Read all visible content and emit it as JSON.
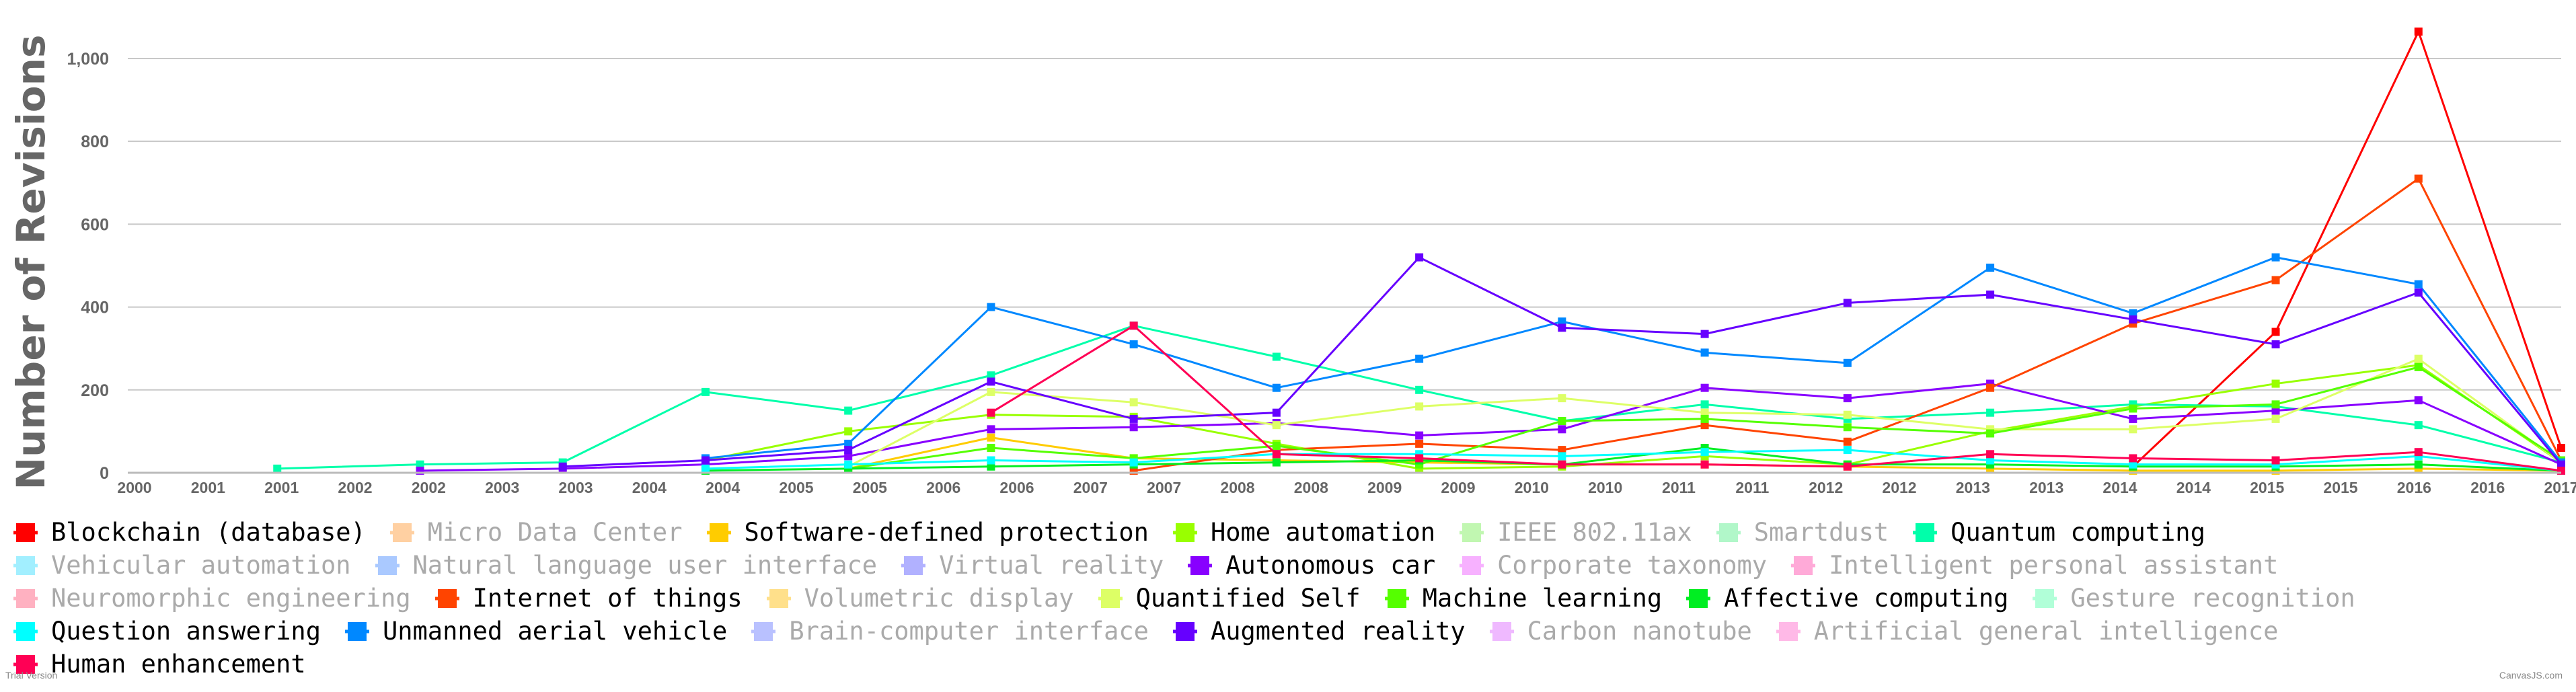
{
  "chart_data": {
    "type": "line",
    "ylabel": "Number of Revisions",
    "xlabel": "",
    "y_ticks": [
      "0",
      "200",
      "400",
      "600",
      "800",
      "1,000"
    ],
    "ylim": [
      0,
      1060
    ],
    "x_ticks": [
      "2000",
      "2001",
      "2001",
      "2002",
      "2002",
      "2003",
      "2003",
      "2004",
      "2004",
      "2005",
      "2005",
      "2006",
      "2006",
      "2007",
      "2007",
      "2008",
      "2008",
      "2009",
      "2009",
      "2010",
      "2010",
      "2011",
      "2011",
      "2012",
      "2012",
      "2013",
      "2013",
      "2014",
      "2014",
      "2015",
      "2015",
      "2016",
      "2016",
      "2017"
    ],
    "xlim": [
      2000,
      2017
    ],
    "grid": true,
    "legend_position": "bottom",
    "series": [
      {
        "name": "Blockchain (database)",
        "color": "#ff0000",
        "visible": true,
        "x": [
          2014,
          2015,
          2016,
          2017
        ],
        "y": [
          15,
          340,
          1065,
          60
        ]
      },
      {
        "name": "Micro Data Center",
        "color": "#ff9933",
        "visible": false,
        "x": [],
        "y": []
      },
      {
        "name": "Software-defined protection",
        "color": "#ffcc00",
        "visible": true,
        "x": [
          2005,
          2006,
          2007,
          2008,
          2009,
          2010,
          2011,
          2012,
          2013,
          2014,
          2015,
          2016,
          2017
        ],
        "y": [
          10,
          85,
          35,
          30,
          25,
          20,
          20,
          15,
          10,
          5,
          5,
          10,
          5
        ]
      },
      {
        "name": "Home automation",
        "color": "#99ff00",
        "visible": true,
        "x": [
          2004,
          2005,
          2006,
          2007,
          2008,
          2009,
          2010,
          2011,
          2012,
          2013,
          2014,
          2015,
          2016,
          2017
        ],
        "y": [
          30,
          100,
          140,
          135,
          70,
          10,
          15,
          40,
          20,
          100,
          160,
          215,
          260,
          25
        ]
      },
      {
        "name": "IEEE 802.11ax",
        "color": "#77ee55",
        "visible": false,
        "x": [],
        "y": []
      },
      {
        "name": "Smartdust",
        "color": "#55ee88",
        "visible": false,
        "x": [],
        "y": []
      },
      {
        "name": "Quantum computing",
        "color": "#00ffaa",
        "visible": true,
        "x": [
          2001,
          2002,
          2003,
          2004,
          2005,
          2006,
          2007,
          2008,
          2009,
          2010,
          2011,
          2012,
          2013,
          2014,
          2015,
          2016,
          2017
        ],
        "y": [
          10,
          20,
          25,
          195,
          150,
          235,
          355,
          280,
          200,
          125,
          165,
          130,
          145,
          165,
          160,
          115,
          25
        ]
      },
      {
        "name": "Vehicular automation",
        "color": "#33ddff",
        "visible": false,
        "x": [],
        "y": []
      },
      {
        "name": "Natural language user interface",
        "color": "#4488ff",
        "visible": false,
        "x": [],
        "y": []
      },
      {
        "name": "Virtual reality",
        "color": "#5555ff",
        "visible": false,
        "x": [],
        "y": []
      },
      {
        "name": "Autonomous car",
        "color": "#8800ff",
        "visible": true,
        "x": [
          2002,
          2003,
          2004,
          2005,
          2006,
          2007,
          2008,
          2009,
          2010,
          2011,
          2012,
          2013,
          2014,
          2015,
          2016,
          2017
        ],
        "y": [
          5,
          10,
          20,
          40,
          105,
          110,
          120,
          90,
          105,
          205,
          180,
          215,
          130,
          150,
          175,
          20
        ]
      },
      {
        "name": "Corporate taxonomy",
        "color": "#ee55ff",
        "visible": false,
        "x": [],
        "y": []
      },
      {
        "name": "Intelligent personal assistant",
        "color": "#ff44aa",
        "visible": false,
        "x": [],
        "y": []
      },
      {
        "name": "Neuromorphic engineering",
        "color": "#ff5577",
        "visible": false,
        "x": [],
        "y": []
      },
      {
        "name": "Internet of things",
        "color": "#ff4400",
        "visible": true,
        "x": [
          2007,
          2008,
          2009,
          2010,
          2011,
          2012,
          2013,
          2014,
          2015,
          2016,
          2017
        ],
        "y": [
          5,
          55,
          70,
          55,
          115,
          75,
          205,
          360,
          465,
          710,
          30
        ]
      },
      {
        "name": "Volumetric display",
        "color": "#ffbb00",
        "visible": false,
        "x": [],
        "y": []
      },
      {
        "name": "Quantified Self",
        "color": "#ddff66",
        "visible": true,
        "x": [
          2005,
          2006,
          2007,
          2008,
          2009,
          2010,
          2011,
          2012,
          2013,
          2014,
          2015,
          2016,
          2017
        ],
        "y": [
          15,
          195,
          170,
          115,
          160,
          180,
          145,
          140,
          105,
          105,
          130,
          275,
          25
        ]
      },
      {
        "name": "Machine learning",
        "color": "#55ff00",
        "visible": true,
        "x": [
          2005,
          2006,
          2007,
          2008,
          2009,
          2010,
          2011,
          2012,
          2013,
          2014,
          2015,
          2016,
          2017
        ],
        "y": [
          10,
          60,
          35,
          65,
          20,
          125,
          130,
          110,
          95,
          155,
          165,
          255,
          30
        ]
      },
      {
        "name": "Affective computing",
        "color": "#00ee22",
        "visible": true,
        "x": [
          2004,
          2005,
          2006,
          2007,
          2008,
          2009,
          2010,
          2011,
          2012,
          2013,
          2014,
          2015,
          2016,
          2017
        ],
        "y": [
          5,
          10,
          15,
          20,
          25,
          30,
          20,
          60,
          20,
          20,
          15,
          15,
          20,
          5
        ]
      },
      {
        "name": "Gesture recognition",
        "color": "#55ffaa",
        "visible": false,
        "x": [],
        "y": []
      },
      {
        "name": "Question answering",
        "color": "#00ffff",
        "visible": true,
        "x": [
          2004,
          2005,
          2006,
          2007,
          2008,
          2009,
          2010,
          2011,
          2012,
          2013,
          2014,
          2015,
          2016,
          2017
        ],
        "y": [
          10,
          20,
          30,
          25,
          45,
          45,
          40,
          50,
          55,
          30,
          20,
          20,
          40,
          5
        ]
      },
      {
        "name": "Unmanned aerial vehicle",
        "color": "#0088ff",
        "visible": true,
        "x": [
          2004,
          2005,
          2006,
          2007,
          2008,
          2009,
          2010,
          2011,
          2012,
          2013,
          2014,
          2015,
          2016,
          2017
        ],
        "y": [
          35,
          70,
          400,
          310,
          205,
          275,
          365,
          290,
          265,
          495,
          385,
          520,
          455,
          25
        ]
      },
      {
        "name": "Brain-computer interface",
        "color": "#6677ff",
        "visible": false,
        "x": [],
        "y": []
      },
      {
        "name": "Augmented reality",
        "color": "#6600ff",
        "visible": true,
        "x": [
          2003,
          2004,
          2005,
          2006,
          2007,
          2008,
          2009,
          2010,
          2011,
          2012,
          2013,
          2014,
          2015,
          2016,
          2017
        ],
        "y": [
          15,
          30,
          55,
          220,
          130,
          145,
          520,
          350,
          335,
          410,
          430,
          370,
          310,
          435,
          20
        ]
      },
      {
        "name": "Carbon nanotube",
        "color": "#dd66ff",
        "visible": false,
        "x": [],
        "y": []
      },
      {
        "name": "Artificial general intelligence",
        "color": "#ff66cc",
        "visible": false,
        "x": [],
        "y": []
      },
      {
        "name": "Human enhancement",
        "color": "#ff0055",
        "visible": true,
        "x": [
          2006,
          2007,
          2008,
          2009,
          2010,
          2011,
          2012,
          2013,
          2014,
          2015,
          2016,
          2017
        ],
        "y": [
          145,
          355,
          45,
          35,
          20,
          20,
          15,
          45,
          35,
          30,
          50,
          5
        ]
      }
    ]
  },
  "footer": {
    "left": "Trial Version",
    "right": "CanvasJS.com"
  }
}
